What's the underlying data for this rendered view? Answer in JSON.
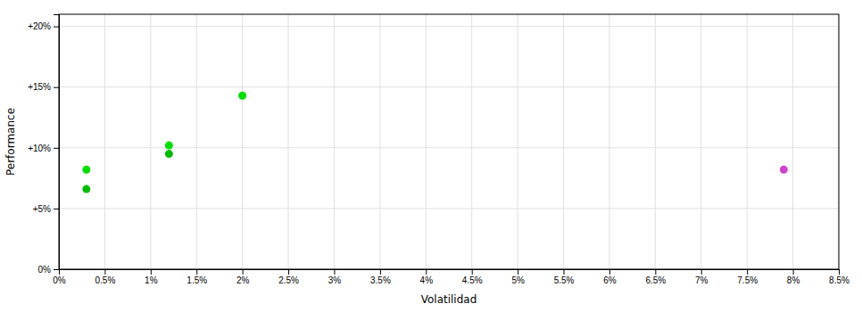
{
  "chart_data": {
    "type": "scatter",
    "xlabel": "Volatilidad",
    "ylabel": "Performance",
    "x": [
      0.003,
      0.003,
      0.012,
      0.012,
      0.02,
      0.079
    ],
    "values": [
      0.082,
      0.066,
      0.102,
      0.095,
      0.143,
      0.082
    ],
    "colors": [
      "#00dd00",
      "#00bb00",
      "#00dd00",
      "#00bb00",
      "#00dd00",
      "#cc44cc"
    ],
    "xlim": [
      0,
      0.085
    ],
    "ylim": [
      0,
      0.21
    ],
    "xticks": [
      {
        "value": 0.0,
        "label": "0%"
      },
      {
        "value": 0.005,
        "label": "0.5%"
      },
      {
        "value": 0.01,
        "label": "1%"
      },
      {
        "value": 0.015,
        "label": "1.5%"
      },
      {
        "value": 0.02,
        "label": "2%"
      },
      {
        "value": 0.025,
        "label": "2.5%"
      },
      {
        "value": 0.03,
        "label": "3%"
      },
      {
        "value": 0.035,
        "label": "3.5%"
      },
      {
        "value": 0.04,
        "label": "4%"
      },
      {
        "value": 0.045,
        "label": "4.5%"
      },
      {
        "value": 0.05,
        "label": "5%"
      },
      {
        "value": 0.055,
        "label": "5.5%"
      },
      {
        "value": 0.06,
        "label": "6%"
      },
      {
        "value": 0.065,
        "label": "6.5%"
      },
      {
        "value": 0.07,
        "label": "7%"
      },
      {
        "value": 0.075,
        "label": "7.5%"
      },
      {
        "value": 0.08,
        "label": "8%"
      },
      {
        "value": 0.085,
        "label": "8.5%"
      }
    ],
    "yticks": [
      {
        "value": 0.0,
        "label": "0%"
      },
      {
        "value": 0.05,
        "label": "+5%"
      },
      {
        "value": 0.1,
        "label": "+10%"
      },
      {
        "value": 0.15,
        "label": "+15%"
      },
      {
        "value": 0.2,
        "label": "+20%"
      }
    ],
    "grid": true
  }
}
